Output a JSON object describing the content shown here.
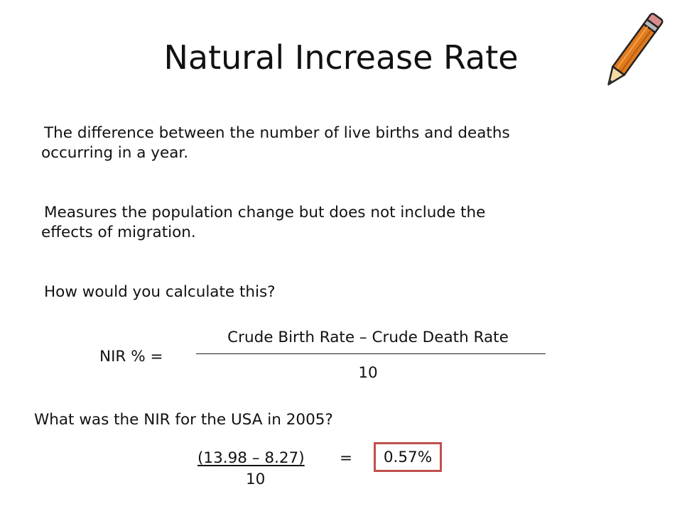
{
  "slide": {
    "title": "Natural Increase Rate",
    "paragraphs": [
      {
        "line1": "The difference between the number of live births and deaths",
        "line2": "occurring in a year."
      },
      {
        "line1": "Measures the population change but does not include the",
        "line2": "effects of migration."
      },
      {
        "line1": "How would you calculate this?"
      }
    ],
    "formula": {
      "label": "NIR % =",
      "numerator": "Crude Birth Rate – Crude Death Rate",
      "denominator": "10"
    },
    "question": "What was the NIR for the USA in 2005?",
    "calculation": {
      "numerator": "(13.98 – 8.27)",
      "equals": "=",
      "denominator": "10",
      "answer": "0.57%"
    },
    "colors": {
      "answer_border": "#c0504d",
      "pencil_body": "#e07a1f",
      "pencil_tip": "#f3d9a4"
    },
    "icons": {
      "decoration": "pencil-icon"
    }
  }
}
